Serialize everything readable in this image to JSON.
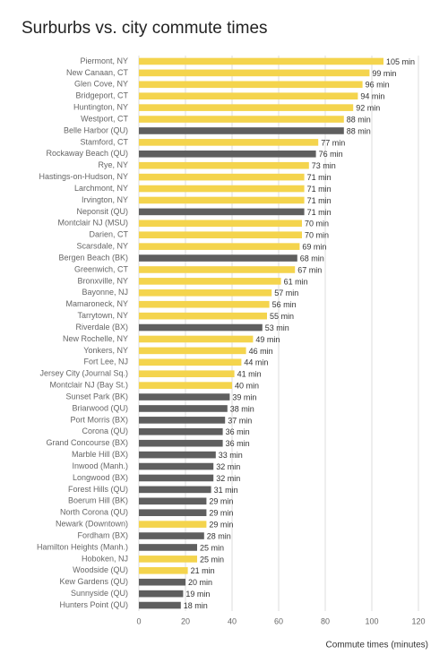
{
  "chart_data": {
    "type": "hbar",
    "title": "Surburbs vs. city commute times",
    "x_label": "Commute times (minutes)",
    "categories": [
      "Piermont, NY",
      "New Canaan, CT",
      "Glen Cove, NY",
      "Bridgeport, CT",
      "Huntington, NY",
      "Westport, CT",
      "Belle Harbor (QU)",
      "Stamford, CT",
      "Rockaway Beach (QU)",
      "Rye, NY",
      "Hastings-on-Hudson, NY",
      "Larchmont, NY",
      "Irvington, NY",
      "Neponsit (QU)",
      "Montclair NJ (MSU)",
      "Darien, CT",
      "Scarsdale, NY",
      "Bergen Beach (BK)",
      "Greenwich, CT",
      "Bronxville, NY",
      "Bayonne, NJ",
      "Mamaroneck, NY",
      "Tarrytown, NY",
      "Riverdale (BX)",
      "New Rochelle, NY",
      "Yonkers, NY",
      "Fort Lee, NJ",
      "Jersey City (Journal Sq.)",
      "Montclair NJ (Bay St.)",
      "Sunset Park (BK)",
      "Briarwood (QU)",
      "Port Morris (BX)",
      "Corona (QU)",
      "Grand Concourse (BX)",
      "Marble Hill (BX)",
      "Inwood (Manh.)",
      "Longwood (BX)",
      "Forest Hills (QU)",
      "Boerum Hill (BK)",
      "North Corona (QU)",
      "Newark (Downtown)",
      "Fordham (BX)",
      "Hamilton Heights (Manh.)",
      "Hoboken, NJ",
      "Woodside (QU)",
      "Kew Gardens (QU)",
      "Sunnyside (QU)",
      "Hunters Point (QU)"
    ],
    "values": [
      105,
      99,
      96,
      94,
      92,
      88,
      88,
      77,
      76,
      73,
      71,
      71,
      71,
      71,
      70,
      70,
      69,
      68,
      67,
      61,
      57,
      56,
      55,
      53,
      49,
      46,
      44,
      41,
      40,
      39,
      38,
      37,
      36,
      36,
      33,
      32,
      32,
      31,
      29,
      29,
      29,
      28,
      25,
      25,
      21,
      20,
      19,
      18
    ],
    "value_labels": [
      "105 min",
      "99 min",
      "96 min",
      "94 min",
      "92 min",
      "88 min",
      "88 min",
      "77 min",
      "76 min",
      "73 min",
      "71 min",
      "71 min",
      "71 min",
      "71 min",
      "70 min",
      "70 min",
      "69 min",
      "68 min",
      "67 min",
      "61 min",
      "57 min",
      "56 min",
      "55 min",
      "53 min",
      "49 min",
      "46 min",
      "44 min",
      "41 min",
      "40 min",
      "39 min",
      "38 min",
      "37 min",
      "36 min",
      "36 min",
      "33 min",
      "32 min",
      "32 min",
      "31 min",
      "29 min",
      "29 min",
      "29 min",
      "28 min",
      "25 min",
      "25 min",
      "21 min",
      "20 min",
      "19 min",
      "18 min"
    ],
    "colors": [
      "#f4d44d",
      "#f4d44d",
      "#f4d44d",
      "#f4d44d",
      "#f4d44d",
      "#f4d44d",
      "#5f5f5f",
      "#f4d44d",
      "#5f5f5f",
      "#f4d44d",
      "#f4d44d",
      "#f4d44d",
      "#f4d44d",
      "#5f5f5f",
      "#f4d44d",
      "#f4d44d",
      "#f4d44d",
      "#5f5f5f",
      "#f4d44d",
      "#f4d44d",
      "#f4d44d",
      "#f4d44d",
      "#f4d44d",
      "#5f5f5f",
      "#f4d44d",
      "#f4d44d",
      "#f4d44d",
      "#f4d44d",
      "#f4d44d",
      "#5f5f5f",
      "#5f5f5f",
      "#5f5f5f",
      "#5f5f5f",
      "#5f5f5f",
      "#5f5f5f",
      "#5f5f5f",
      "#5f5f5f",
      "#5f5f5f",
      "#5f5f5f",
      "#5f5f5f",
      "#f4d44d",
      "#5f5f5f",
      "#5f5f5f",
      "#f4d44d",
      "#f4d44d",
      "#5f5f5f",
      "#5f5f5f",
      "#5f5f5f"
    ],
    "xlim": [
      0,
      120
    ],
    "xticks": [
      0,
      20,
      40,
      60,
      80,
      100,
      120
    ],
    "grid": true
  }
}
